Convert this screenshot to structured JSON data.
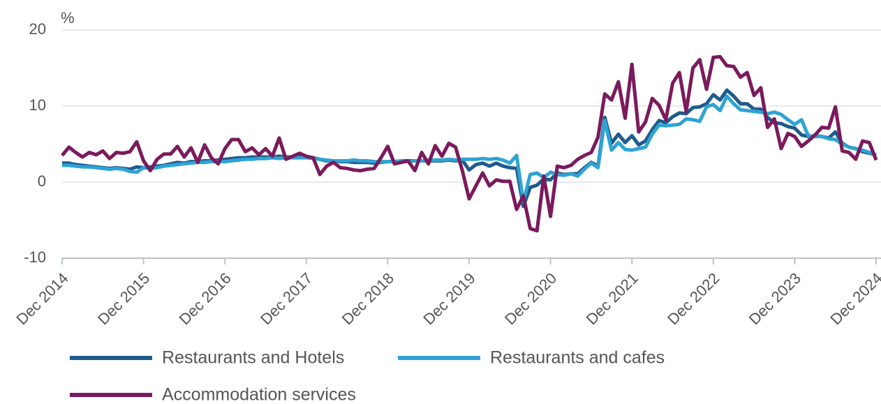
{
  "chart_data": {
    "type": "line",
    "y_label": "%",
    "categories": [
      "Dec 2014",
      null,
      null,
      null,
      null,
      null,
      null,
      null,
      null,
      null,
      null,
      null,
      "Dec 2015",
      null,
      null,
      null,
      null,
      null,
      null,
      null,
      null,
      null,
      null,
      null,
      "Dec 2016",
      null,
      null,
      null,
      null,
      null,
      null,
      null,
      null,
      null,
      null,
      null,
      "Dec 2017",
      null,
      null,
      null,
      null,
      null,
      null,
      null,
      null,
      null,
      null,
      null,
      "Dec 2018",
      null,
      null,
      null,
      null,
      null,
      null,
      null,
      null,
      null,
      null,
      null,
      "Dec 2019",
      null,
      null,
      null,
      null,
      null,
      null,
      null,
      null,
      null,
      null,
      null,
      "Dec 2020",
      null,
      null,
      null,
      null,
      null,
      null,
      null,
      null,
      null,
      null,
      null,
      "Dec 2021",
      null,
      null,
      null,
      null,
      null,
      null,
      null,
      null,
      null,
      null,
      null,
      "Dec 2022",
      null,
      null,
      null,
      null,
      null,
      null,
      null,
      null,
      null,
      null,
      null,
      "Dec 2023",
      null,
      null,
      null,
      null,
      null,
      null,
      null,
      null,
      null,
      null,
      null,
      "Dec 2024"
    ],
    "series": [
      {
        "name": "Restaurants and Hotels",
        "color": "#1f5b8c",
        "values": [
          2.5,
          2.5,
          2.3,
          2.2,
          2.1,
          2.0,
          1.9,
          1.8,
          1.9,
          1.8,
          1.7,
          2.0,
          1.9,
          2.0,
          2.1,
          2.2,
          2.4,
          2.6,
          2.5,
          2.7,
          2.7,
          2.8,
          2.8,
          2.9,
          3.0,
          3.1,
          3.2,
          3.2,
          3.3,
          3.3,
          3.3,
          3.3,
          3.4,
          3.3,
          3.3,
          3.3,
          3.3,
          3.2,
          3.0,
          2.8,
          2.8,
          2.7,
          2.7,
          2.6,
          2.6,
          2.6,
          2.5,
          2.6,
          2.7,
          2.7,
          2.8,
          2.8,
          2.8,
          2.8,
          2.8,
          2.8,
          2.8,
          2.9,
          2.8,
          2.9,
          1.6,
          2.3,
          2.5,
          2.1,
          2.5,
          2.1,
          1.9,
          1.8,
          -3.2,
          -0.7,
          -0.4,
          0.4,
          0.3,
          1.2,
          1.0,
          1.1,
          1.1,
          1.9,
          2.6,
          2.1,
          8.5,
          5.1,
          6.3,
          5.2,
          6.1,
          4.9,
          5.4,
          6.9,
          8.1,
          7.8,
          8.6,
          9.1,
          9.0,
          9.8,
          9.9,
          10.3,
          11.5,
          10.8,
          12.1,
          11.3,
          10.3,
          10.3,
          9.6,
          9.6,
          8.5,
          7.8,
          7.7,
          7.3,
          7.1,
          6.2,
          6.0,
          6.1,
          6.0,
          5.8,
          6.6,
          5.1,
          4.6,
          4.4,
          4.0,
          3.8,
          3.6
        ]
      },
      {
        "name": "Restaurants and cafes",
        "color": "#2ea3d4",
        "values": [
          2.2,
          2.2,
          2.1,
          2.0,
          2.0,
          1.9,
          1.8,
          1.7,
          1.8,
          1.7,
          1.4,
          1.3,
          1.9,
          1.8,
          1.9,
          2.1,
          2.2,
          2.3,
          2.4,
          2.5,
          2.6,
          2.6,
          2.7,
          2.7,
          2.7,
          2.8,
          2.9,
          3.0,
          3.0,
          3.1,
          3.1,
          3.2,
          3.1,
          3.2,
          3.2,
          3.2,
          3.2,
          3.1,
          3.0,
          2.9,
          2.8,
          2.8,
          2.8,
          2.9,
          2.8,
          2.8,
          2.7,
          2.7,
          2.7,
          2.7,
          2.8,
          2.7,
          2.8,
          2.8,
          2.9,
          2.9,
          2.9,
          3.0,
          2.9,
          3.0,
          3.0,
          3.0,
          3.1,
          3.0,
          3.1,
          2.9,
          2.5,
          3.5,
          -2.6,
          1.0,
          1.2,
          0.6,
          1.3,
          1.0,
          0.9,
          1.1,
          0.8,
          1.7,
          2.5,
          1.9,
          8.1,
          4.2,
          5.2,
          4.3,
          4.2,
          4.4,
          4.6,
          6.3,
          7.5,
          7.4,
          7.5,
          7.6,
          8.3,
          8.2,
          8.0,
          9.9,
          10.2,
          9.4,
          11.3,
          10.3,
          9.5,
          9.4,
          9.3,
          9.2,
          9.0,
          9.2,
          8.9,
          8.2,
          7.6,
          8.2,
          6.1,
          6.0,
          6.0,
          5.7,
          5.6,
          5.0,
          4.6,
          4.4,
          4.2,
          3.9,
          3.5
        ]
      },
      {
        "name": "Accommodation services",
        "color": "#7b1a5c",
        "values": [
          3.5,
          4.6,
          3.9,
          3.3,
          3.9,
          3.6,
          4.1,
          3.1,
          3.9,
          3.8,
          4.0,
          5.3,
          2.8,
          1.5,
          3.0,
          3.7,
          3.7,
          4.7,
          3.3,
          4.5,
          2.6,
          4.9,
          3.2,
          2.4,
          4.4,
          5.6,
          5.6,
          4.0,
          4.5,
          3.6,
          4.4,
          3.4,
          5.8,
          3.0,
          3.4,
          3.8,
          3.4,
          3.2,
          1.0,
          2.1,
          2.6,
          1.9,
          1.8,
          1.6,
          1.5,
          1.7,
          1.8,
          3.2,
          4.7,
          2.4,
          2.6,
          2.8,
          1.5,
          3.9,
          2.4,
          4.8,
          3.4,
          5.1,
          4.6,
          1.5,
          -2.2,
          -0.5,
          1.2,
          -0.5,
          0.3,
          0.1,
          0.1,
          -3.6,
          -1.8,
          -6.1,
          -6.4,
          0.8,
          -4.5,
          2.1,
          1.9,
          2.2,
          3.0,
          3.5,
          3.9,
          5.9,
          11.6,
          10.8,
          13.2,
          8.4,
          15.5,
          6.6,
          7.9,
          11.0,
          10.1,
          8.2,
          13.0,
          14.4,
          9.3,
          15.0,
          16.1,
          12.2,
          16.4,
          16.5,
          15.3,
          15.2,
          13.8,
          14.4,
          11.4,
          12.4,
          7.2,
          8.3,
          4.4,
          6.4,
          6.0,
          4.7,
          5.4,
          6.2,
          7.2,
          7.1,
          9.9,
          4.1,
          3.9,
          3.0,
          5.4,
          5.2,
          2.9
        ]
      }
    ],
    "ylim": [
      -10,
      20
    ],
    "yticks": [
      -10,
      0,
      10,
      20
    ],
    "grid": true
  }
}
